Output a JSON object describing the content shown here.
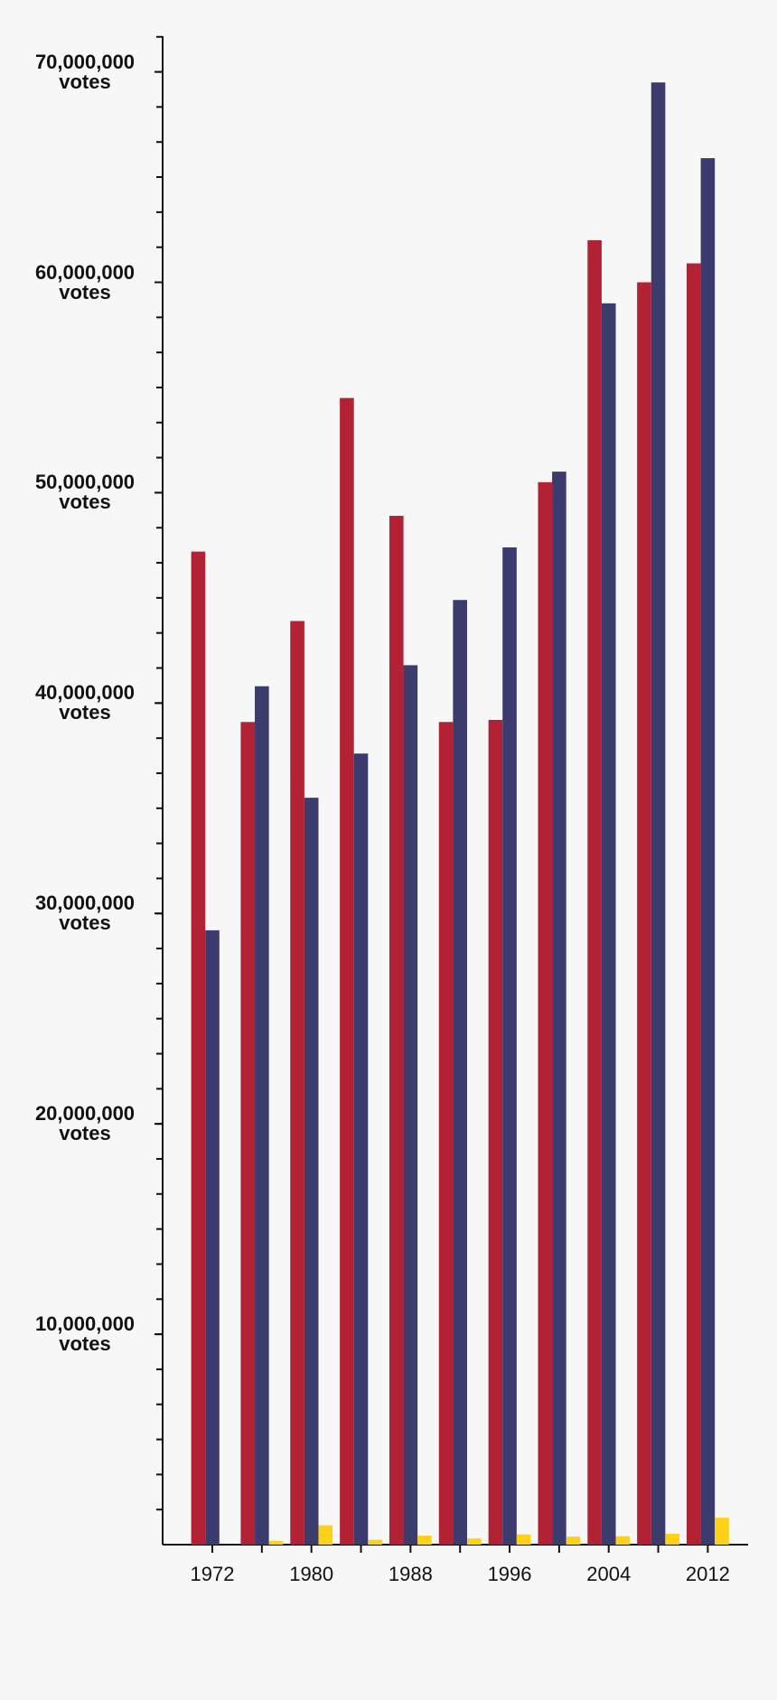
{
  "chart_data": {
    "type": "bar",
    "categories": [
      "1972",
      null,
      "1980",
      null,
      "1988",
      null,
      "1996",
      null,
      "2004",
      null,
      "2012"
    ],
    "series": [
      {
        "color": "#b22234",
        "values": [
          47200000,
          39100000,
          43900000,
          54500000,
          48900000,
          39100000,
          39200000,
          50500000,
          62000000,
          60000000,
          60900000
        ]
      },
      {
        "color": "#3c3b6e",
        "values": [
          29200000,
          40800000,
          35500000,
          37600000,
          41800000,
          44900000,
          47400000,
          51000000,
          59000000,
          69500000,
          65900000
        ]
      },
      {
        "color": "#fcd116",
        "values": [
          0,
          170000,
          920000,
          230000,
          430000,
          290000,
          490000,
          380000,
          400000,
          520000,
          1280000
        ]
      }
    ],
    "ylim": [
      0,
      71700000
    ],
    "yticks": [
      {
        "value": 10000000,
        "label": "10,000,000 votes"
      },
      {
        "value": 20000000,
        "label": "20,000,000 votes"
      },
      {
        "value": 30000000,
        "label": "30,000,000 votes"
      },
      {
        "value": 40000000,
        "label": "40,000,000 votes"
      },
      {
        "value": 50000000,
        "label": "50,000,000 votes"
      },
      {
        "value": 60000000,
        "label": "60,000,000 votes"
      },
      {
        "value": 70000000,
        "label": "70,000,000 votes"
      }
    ],
    "y_minor_divisions": 6
  }
}
